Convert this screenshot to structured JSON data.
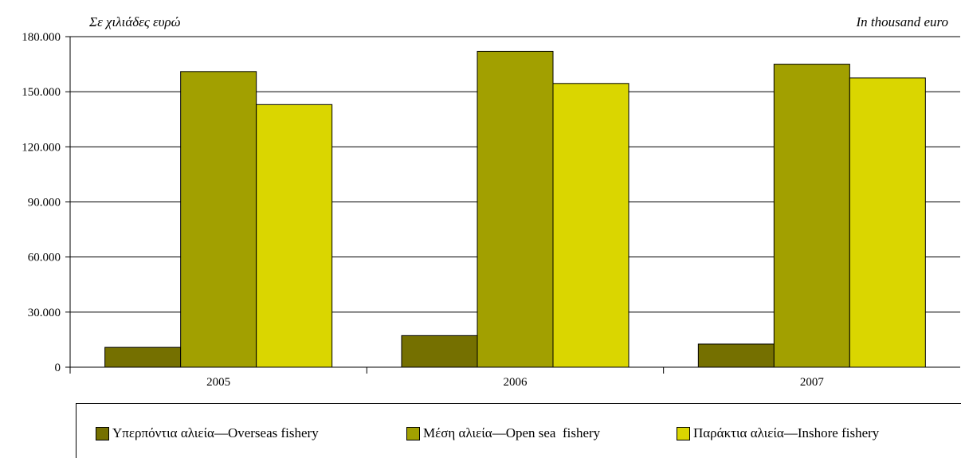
{
  "chart_data": {
    "type": "bar",
    "title": "",
    "unit_label_el": "Σε χιλιάδες ευρώ",
    "unit_label_en": "In thousand euro",
    "categories": [
      "2005",
      "2006",
      "2007"
    ],
    "series": [
      {
        "name": "Υπερπόντια αλιεία—Overseas fishery",
        "color": "#757000",
        "values": [
          10800,
          17200,
          12600
        ]
      },
      {
        "name": "Μέση αλιεία—Open sea  fishery",
        "color": "#a2a000",
        "values": [
          161000,
          172000,
          165000
        ]
      },
      {
        "name": "Παράκτια αλιεία—Inshore fishery",
        "color": "#dad600",
        "values": [
          143000,
          154500,
          157500
        ]
      }
    ],
    "y_ticks": [
      "0",
      "30.000",
      "60.000",
      "90.000",
      "120.000",
      "150.000",
      "180.000"
    ],
    "ylim": [
      0,
      180000
    ],
    "grid": true,
    "legend_position": "bottom"
  }
}
